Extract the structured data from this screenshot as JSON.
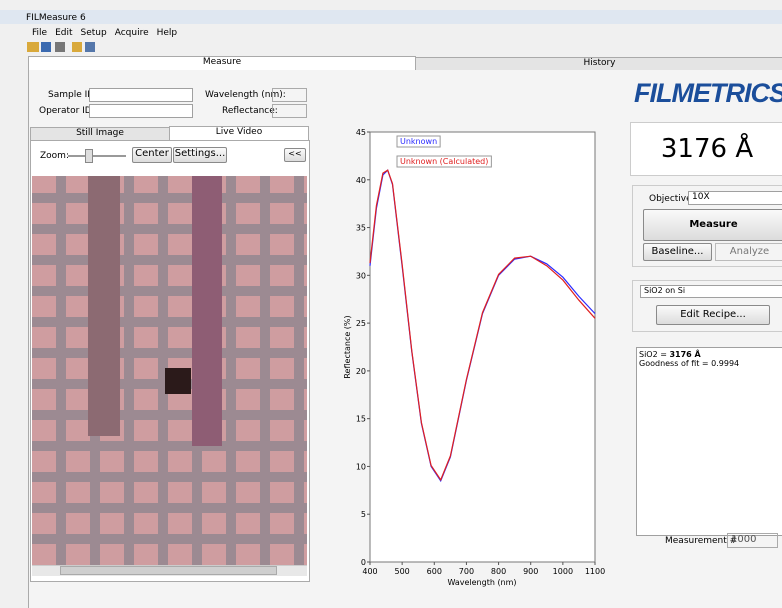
{
  "window": {
    "title": "FILMeasure 6",
    "menu": [
      "File",
      "Edit",
      "Setup",
      "Acquire",
      "Help"
    ]
  },
  "tabs": [
    "Measure",
    "History"
  ],
  "form": {
    "sample_id_label": "Sample ID:",
    "operator_id_label": "Operator ID:",
    "wavelength_label": "Wavelength (nm):",
    "reflectance_label": "Reflectance:"
  },
  "video": {
    "tabs": [
      "Still Image",
      "Live Video"
    ],
    "zoom_label": "Zoom:",
    "buttons": [
      "Center",
      "Settings..."
    ],
    "collapse": "<<"
  },
  "chart_data": {
    "type": "line",
    "xlabel": "Wavelength (nm)",
    "ylabel": "Reflectance (%)",
    "x": [
      400,
      420,
      440,
      455,
      470,
      500,
      530,
      560,
      590,
      620,
      650,
      700,
      750,
      800,
      850,
      900,
      950,
      1000,
      1050,
      1100
    ],
    "series": [
      {
        "name": "Unknown",
        "color": "#2a2aff",
        "values": [
          31,
          37,
          40.5,
          41,
          39.5,
          31,
          22,
          14.5,
          10,
          8.5,
          11,
          19,
          26,
          30,
          31.7,
          32,
          31.2,
          29.8,
          27.8,
          26
        ]
      },
      {
        "name": "Unknown (Calculated)",
        "color": "#e02020",
        "values": [
          31.3,
          37.3,
          40.7,
          41,
          39.6,
          31.2,
          22.1,
          14.6,
          10.1,
          8.6,
          11.1,
          19.1,
          26.1,
          30.1,
          31.8,
          32,
          31,
          29.5,
          27.4,
          25.5
        ]
      }
    ],
    "xlim": [
      400,
      1100
    ],
    "ylim": [
      0,
      45
    ],
    "xticks": [
      400,
      500,
      600,
      700,
      800,
      900,
      1000,
      1100
    ],
    "yticks": [
      0,
      5,
      10,
      15,
      20,
      25,
      30,
      35,
      40,
      45
    ],
    "legend": "upper left"
  },
  "side": {
    "logo": "FILMETRICS",
    "thickness": "3176 Å",
    "objective_label": "Objective:",
    "objective": "10X",
    "measure": "Measure",
    "baseline": "Baseline...",
    "analyze": "Analyze",
    "recipe": "SiO2 on Si",
    "edit_recipe": "Edit Recipe...",
    "result_prefix": "SiO2 = ",
    "result_value": "3176 Å",
    "goodness": "Goodness of fit = 0.9994",
    "measurement_label": "Measurement #",
    "measurement": "1000"
  }
}
